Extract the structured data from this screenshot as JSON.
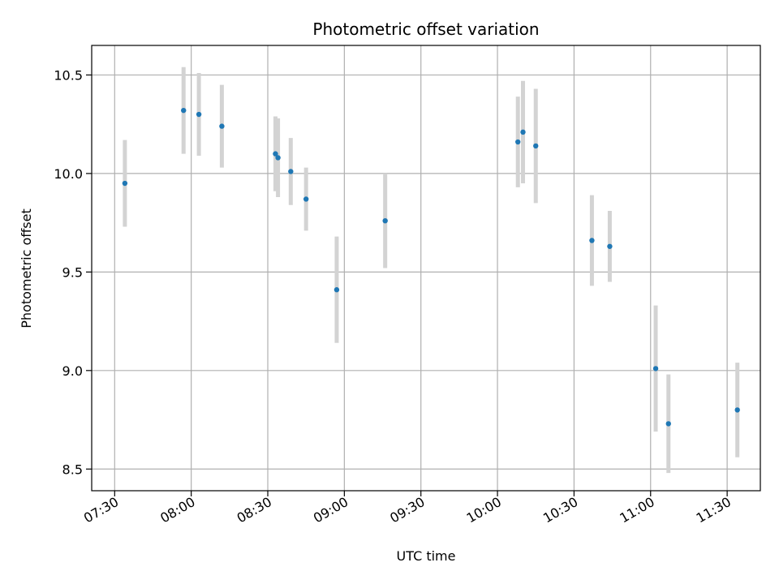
{
  "chart_data": {
    "type": "scatter",
    "title": "Photometric offset variation",
    "xlabel": "UTC time",
    "ylabel": "Photometric offset",
    "grid": true,
    "legend": "none",
    "x_tick_labels": [
      "07:30",
      "08:00",
      "08:30",
      "09:00",
      "09:30",
      "10:00",
      "10:30",
      "11:00",
      "11:30"
    ],
    "y_ticks": [
      8.5,
      9.0,
      9.5,
      10.0,
      10.5
    ],
    "y_tick_labels": [
      "8.5",
      "9.0",
      "9.5",
      "10.0",
      "10.5"
    ],
    "xlim": [
      "07:21",
      "11:43"
    ],
    "ylim": [
      8.39,
      10.65
    ],
    "colors": {
      "points": "#1f77b4",
      "errorbars": "#d3d3d3",
      "grid": "#b0b0b0"
    },
    "series": [
      {
        "x": [
          "07:34",
          "07:57",
          "08:03",
          "08:12",
          "08:33",
          "08:34",
          "08:39",
          "08:45",
          "08:57",
          "09:16",
          "10:08",
          "10:10",
          "10:15",
          "10:37",
          "10:44",
          "11:02",
          "11:07",
          "11:34"
        ],
        "y": [
          9.95,
          10.32,
          10.3,
          10.24,
          10.1,
          10.08,
          10.01,
          9.87,
          9.41,
          9.76,
          10.16,
          10.21,
          10.14,
          9.66,
          9.63,
          9.01,
          8.73,
          8.8
        ],
        "yerr": [
          0.22,
          0.22,
          0.21,
          0.21,
          0.19,
          0.2,
          0.17,
          0.16,
          0.27,
          0.24,
          0.23,
          0.26,
          0.29,
          0.23,
          0.18,
          0.32,
          0.25,
          0.24
        ]
      }
    ]
  }
}
